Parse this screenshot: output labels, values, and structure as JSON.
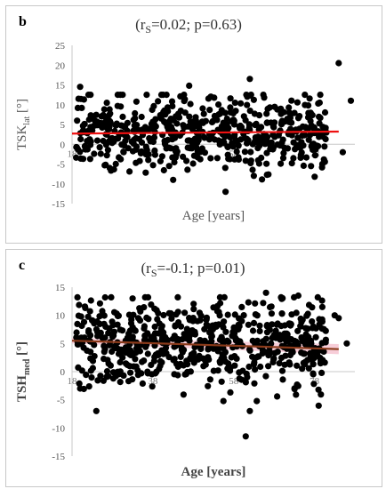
{
  "colors": {
    "points": "#000000",
    "trend_b": "#ee1111",
    "trend_c": "#8b3a1a",
    "band_c": "#f4b8c8",
    "axis": "#c8c8c8"
  },
  "chart_data": [
    {
      "type": "scatter",
      "panel": "b",
      "stat_prefix": "(r",
      "stat_sub": "S",
      "stat_suffix": "=0.02; p=0.63)",
      "ylabel_main": "TSK",
      "ylabel_sub": "lat",
      "ylabel_suffix": " [°]",
      "xlabel": "Age [years]",
      "xlim": [
        18,
        88
      ],
      "ylim": [
        -15,
        25
      ],
      "x_ticks": [
        18,
        38,
        58,
        78
      ],
      "y_ticks": [
        -15,
        -10,
        -5,
        0,
        5,
        10,
        15,
        20,
        25
      ],
      "n_points": 560,
      "trend": {
        "x": [
          18,
          84
        ],
        "y": [
          2.7,
          3.2
        ]
      },
      "points_seed": 7,
      "points_mean_y": 3.0,
      "points_sd_y": 4.5,
      "highlight_points": [
        [
          20,
          14.5
        ],
        [
          47,
          14.8
        ],
        [
          62,
          16.5
        ],
        [
          84,
          20.5
        ],
        [
          87,
          11
        ],
        [
          85,
          -2
        ],
        [
          56,
          -12
        ],
        [
          63,
          -8
        ],
        [
          80,
          3
        ]
      ]
    },
    {
      "type": "scatter",
      "panel": "c",
      "stat_prefix": "(r",
      "stat_sub": "S",
      "stat_suffix": "=-0.1; p=0.01)",
      "ylabel_main": "TSH",
      "ylabel_sub": "med",
      "ylabel_suffix": " [°]",
      "xlabel": "Age [years]",
      "xlim": [
        18,
        88
      ],
      "ylim": [
        -15,
        15
      ],
      "x_ticks": [
        18,
        38,
        58,
        78
      ],
      "y_ticks": [
        -15,
        -10,
        -5,
        0,
        5,
        10,
        15
      ],
      "n_points": 620,
      "trend": {
        "x": [
          18,
          84
        ],
        "y": [
          5.5,
          4.0
        ]
      },
      "points_seed": 13,
      "points_mean_y": 5.0,
      "points_sd_y": 3.8,
      "highlight_points": [
        [
          24,
          -7
        ],
        [
          61,
          -11.5
        ],
        [
          62,
          -7
        ],
        [
          33,
          13
        ],
        [
          66,
          14
        ],
        [
          74,
          13.5
        ],
        [
          84,
          9.5
        ],
        [
          86,
          5
        ],
        [
          83,
          10
        ],
        [
          20,
          -3
        ]
      ]
    }
  ]
}
